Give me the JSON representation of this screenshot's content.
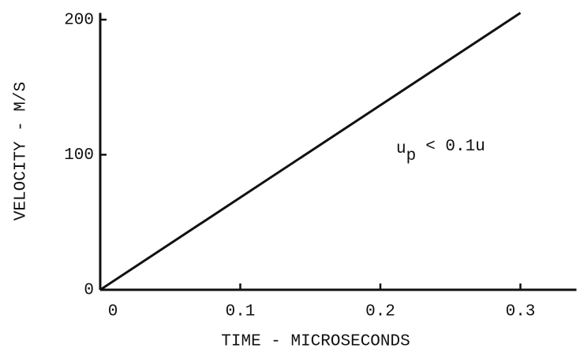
{
  "chart_data": {
    "type": "line",
    "x_label": "TIME - MICROSECONDS",
    "y_label": "VELOCITY - M/S",
    "annotation": {
      "base": "u",
      "subscript": "p",
      "rest": "< 0.1u"
    },
    "series": [
      {
        "color": "#111111",
        "x": [
          0,
          0.3
        ],
        "values": [
          0,
          205
        ]
      }
    ],
    "xlim": [
      0,
      0.34
    ],
    "xticks": [
      0,
      0.1,
      0.2,
      0.3
    ],
    "ylim": [
      0,
      205
    ],
    "yticks": [
      0,
      100,
      200
    ],
    "grid": false
  }
}
